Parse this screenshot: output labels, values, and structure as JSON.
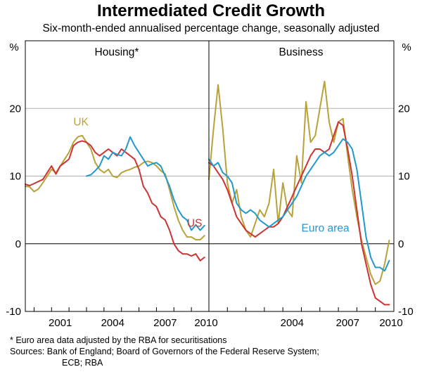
{
  "chart_data": {
    "type": "line",
    "title": "Intermediated Credit Growth",
    "subtitle": "Six-month-ended annualised percentage change, seasonally adjusted",
    "yunit": "%",
    "ylim": [
      -10,
      30
    ],
    "yticks": [
      -10,
      0,
      10,
      20
    ],
    "panels": [
      {
        "title": "Housing*",
        "xlim": [
          1999.5,
          2010.0
        ],
        "xticks": [
          2001,
          2004,
          2007,
          2010
        ],
        "series": [
          {
            "name": "UK",
            "color": "#b8a23a",
            "x": [
              1999.5,
              1999.75,
              2000.0,
              2000.25,
              2000.5,
              2000.75,
              2001.0,
              2001.25,
              2001.5,
              2001.75,
              2002.0,
              2002.25,
              2002.5,
              2002.75,
              2003.0,
              2003.25,
              2003.5,
              2003.75,
              2004.0,
              2004.25,
              2004.5,
              2004.75,
              2005.0,
              2005.25,
              2005.5,
              2005.75,
              2006.0,
              2006.25,
              2006.5,
              2006.75,
              2007.0,
              2007.25,
              2007.5,
              2007.75,
              2008.0,
              2008.25,
              2008.5,
              2008.75,
              2009.0,
              2009.25,
              2009.5,
              2009.75
            ],
            "y": [
              8.5,
              8.4,
              7.7,
              8.1,
              9.0,
              10.0,
              11.0,
              10.5,
              11.5,
              12.5,
              13.5,
              15.0,
              15.8,
              16.0,
              15.0,
              14.0,
              12.0,
              11.0,
              10.5,
              11.0,
              10.0,
              9.8,
              10.5,
              10.8,
              11.0,
              11.3,
              11.5,
              12.0,
              12.2,
              12.0,
              11.5,
              10.8,
              10.3,
              8.0,
              5.5,
              3.5,
              2.0,
              1.0,
              1.0,
              0.6,
              0.6,
              1.2
            ]
          },
          {
            "name": "US",
            "color": "#cc3333",
            "x": [
              1999.5,
              1999.75,
              2000.0,
              2000.25,
              2000.5,
              2000.75,
              2001.0,
              2001.25,
              2001.5,
              2001.75,
              2002.0,
              2002.25,
              2002.5,
              2002.75,
              2003.0,
              2003.25,
              2003.5,
              2003.75,
              2004.0,
              2004.25,
              2004.5,
              2004.75,
              2005.0,
              2005.25,
              2005.5,
              2005.75,
              2006.0,
              2006.25,
              2006.5,
              2006.75,
              2007.0,
              2007.25,
              2007.5,
              2007.75,
              2008.0,
              2008.25,
              2008.5,
              2008.75,
              2009.0,
              2009.25,
              2009.5,
              2009.75
            ],
            "y": [
              8.8,
              8.6,
              8.9,
              9.2,
              9.5,
              10.5,
              11.5,
              10.3,
              11.5,
              12.0,
              12.5,
              14.5,
              15.0,
              15.2,
              15.0,
              14.5,
              13.5,
              13.0,
              13.5,
              14.0,
              13.5,
              13.0,
              14.0,
              13.5,
              13.0,
              12.5,
              11.0,
              8.5,
              7.5,
              6.0,
              5.5,
              4.0,
              3.5,
              2.0,
              0.0,
              -1.0,
              -1.5,
              -1.5,
              -1.8,
              -1.5,
              -2.5,
              -2.0
            ]
          },
          {
            "name": "Euro area",
            "color": "#2299cc",
            "x": [
              2003.0,
              2003.25,
              2003.5,
              2003.75,
              2004.0,
              2004.25,
              2004.5,
              2004.75,
              2005.0,
              2005.25,
              2005.5,
              2005.75,
              2006.0,
              2006.25,
              2006.5,
              2006.75,
              2007.0,
              2007.25,
              2007.5,
              2007.75,
              2008.0,
              2008.25,
              2008.5,
              2008.75,
              2009.0,
              2009.25,
              2009.5,
              2009.75
            ],
            "y": [
              10.0,
              10.2,
              10.8,
              11.5,
              13.0,
              12.5,
              13.5,
              13.2,
              13.0,
              14.0,
              15.8,
              14.5,
              13.5,
              12.5,
              11.5,
              11.8,
              12.0,
              11.5,
              10.0,
              8.5,
              6.5,
              5.0,
              4.0,
              3.5,
              2.0,
              2.8,
              2.0,
              2.7
            ]
          }
        ],
        "labels": [
          {
            "text": "UK",
            "series": "UK",
            "x": 2002.25,
            "y": 17.5
          },
          {
            "text": "US",
            "series": "US",
            "x": 2008.75,
            "y": 2.5
          }
        ]
      },
      {
        "title": "Business",
        "xlim": [
          2000.0,
          2010.0
        ],
        "xticks": [
          2004,
          2007,
          2010
        ],
        "series": [
          {
            "name": "UK",
            "color": "#b8a23a",
            "x": [
              2000.0,
              2000.25,
              2000.5,
              2000.75,
              2001.0,
              2001.25,
              2001.5,
              2001.75,
              2002.0,
              2002.25,
              2002.5,
              2002.75,
              2003.0,
              2003.25,
              2003.5,
              2003.75,
              2004.0,
              2004.25,
              2004.5,
              2004.75,
              2005.0,
              2005.25,
              2005.5,
              2005.75,
              2006.0,
              2006.25,
              2006.5,
              2006.75,
              2007.0,
              2007.25,
              2007.5,
              2007.75,
              2008.0,
              2008.25,
              2008.5,
              2008.75,
              2009.0,
              2009.25,
              2009.5,
              2009.75
            ],
            "y": [
              9.5,
              17.0,
              23.5,
              17.0,
              9.0,
              6.0,
              8.0,
              4.0,
              2.0,
              1.0,
              3.0,
              5.0,
              4.0,
              6.0,
              11.0,
              3.0,
              9.0,
              5.0,
              4.0,
              13.0,
              9.0,
              21.0,
              15.0,
              16.0,
              20.0,
              24.0,
              18.0,
              15.0,
              18.0,
              18.5,
              13.0,
              8.0,
              4.0,
              0.5,
              -2.0,
              -4.5,
              -6.0,
              -5.5,
              -3.0,
              0.5
            ]
          },
          {
            "name": "US",
            "color": "#cc3333",
            "x": [
              2000.0,
              2000.25,
              2000.5,
              2000.75,
              2001.0,
              2001.25,
              2001.5,
              2001.75,
              2002.0,
              2002.25,
              2002.5,
              2002.75,
              2003.0,
              2003.25,
              2003.5,
              2003.75,
              2004.0,
              2004.25,
              2004.5,
              2004.75,
              2005.0,
              2005.25,
              2005.5,
              2005.75,
              2006.0,
              2006.25,
              2006.5,
              2006.75,
              2007.0,
              2007.25,
              2007.5,
              2007.75,
              2008.0,
              2008.25,
              2008.5,
              2008.75,
              2009.0,
              2009.25,
              2009.5,
              2009.75
            ],
            "y": [
              12.0,
              11.5,
              10.5,
              9.5,
              8.0,
              6.0,
              4.0,
              3.0,
              2.0,
              1.5,
              1.0,
              1.5,
              2.0,
              2.5,
              2.5,
              3.0,
              4.0,
              5.5,
              7.0,
              8.5,
              10.0,
              11.5,
              13.0,
              14.0,
              14.0,
              13.5,
              14.0,
              16.0,
              18.0,
              17.5,
              14.0,
              10.0,
              5.0,
              0.0,
              -3.0,
              -6.0,
              -8.0,
              -8.5,
              -9.0,
              -9.0
            ]
          },
          {
            "name": "Euro area",
            "color": "#2299cc",
            "x": [
              2000.0,
              2000.25,
              2000.5,
              2000.75,
              2001.0,
              2001.25,
              2001.5,
              2001.75,
              2002.0,
              2002.25,
              2002.5,
              2002.75,
              2003.0,
              2003.25,
              2003.5,
              2003.75,
              2004.0,
              2004.25,
              2004.5,
              2004.75,
              2005.0,
              2005.25,
              2005.5,
              2005.75,
              2006.0,
              2006.25,
              2006.5,
              2006.75,
              2007.0,
              2007.25,
              2007.5,
              2007.75,
              2008.0,
              2008.25,
              2008.5,
              2008.75,
              2009.0,
              2009.25,
              2009.5,
              2009.75
            ],
            "y": [
              12.5,
              11.5,
              12.0,
              10.5,
              10.0,
              9.0,
              6.0,
              5.0,
              4.5,
              5.0,
              4.5,
              3.5,
              3.0,
              2.5,
              3.0,
              3.5,
              4.0,
              5.0,
              6.0,
              7.0,
              8.5,
              10.0,
              11.0,
              12.0,
              13.0,
              13.5,
              13.0,
              13.5,
              14.5,
              15.5,
              15.0,
              14.0,
              11.0,
              6.0,
              1.0,
              -2.0,
              -3.5,
              -3.5,
              -4.0,
              -2.5
            ]
          }
        ],
        "labels": [
          {
            "text": "Euro area",
            "series": "Euro area",
            "x": 2005.0,
            "y": 1.8
          }
        ]
      }
    ]
  },
  "footnotes": [
    "*  Euro area data adjusted by the RBA for securitisations",
    "Sources: Bank of England; Board of Governors of the Federal Reserve System;",
    "ECB; RBA"
  ]
}
